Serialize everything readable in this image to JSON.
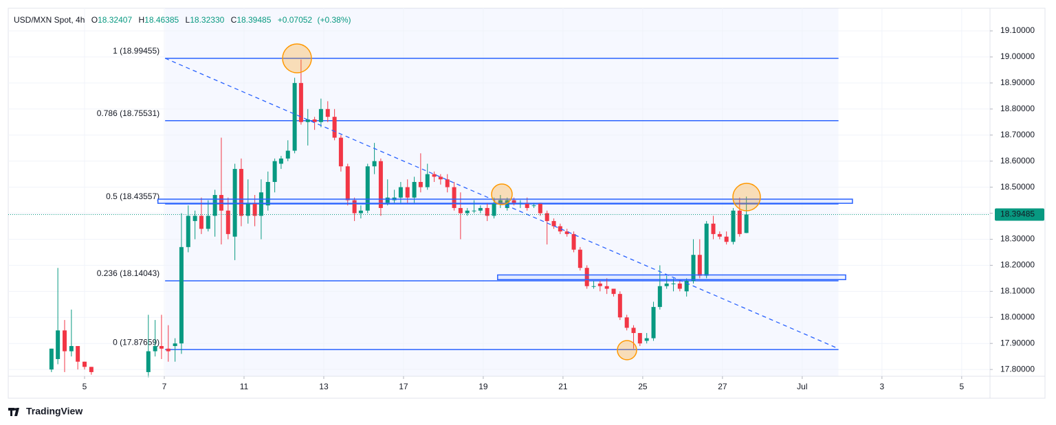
{
  "chart_data": {
    "type": "candlestick",
    "title": "USD/MXN Spot, 4h",
    "ohlc_header": [
      [
        "O",
        "18.32407"
      ],
      [
        "H",
        "18.46385"
      ],
      [
        "L",
        "18.32330"
      ],
      [
        "C",
        "18.39485"
      ]
    ],
    "change": "+0.07052",
    "change_pct": "(+0.38%)",
    "up_color": "#089981",
    "down_color": "#f23645",
    "x": [
      1.17,
      1.33,
      1.5,
      1.67,
      1.83,
      2.0,
      2.17,
      3.6,
      3.77,
      3.93,
      4.1,
      4.27,
      4.43,
      4.6,
      4.77,
      4.93,
      5.1,
      5.27,
      5.43,
      5.6,
      5.77,
      5.93,
      6.1,
      6.27,
      6.43,
      6.6,
      6.77,
      6.93,
      7.1,
      7.27,
      7.43,
      7.6,
      7.77,
      7.93,
      8.1,
      8.27,
      8.43,
      8.6,
      8.77,
      8.93,
      9.1,
      9.27,
      9.43,
      9.6,
      9.77,
      9.93,
      10.1,
      10.27,
      10.43,
      10.6,
      10.77,
      10.93,
      11.1,
      11.27,
      11.43,
      11.6,
      11.77,
      11.93,
      12.1,
      12.27,
      12.43,
      12.6,
      12.77,
      12.93,
      13.1,
      13.27,
      13.43,
      13.6,
      13.77,
      13.93,
      14.1,
      14.27,
      14.43,
      14.6,
      14.77,
      14.93,
      15.1,
      15.27,
      15.43,
      15.6,
      15.77,
      15.93,
      16.1,
      16.27,
      16.43,
      16.6,
      16.77,
      16.93,
      17.1,
      17.27,
      17.43,
      17.6,
      17.77,
      17.93,
      18.1,
      18.27,
      18.43,
      18.6
    ],
    "open": [
      17.8,
      17.84,
      17.95,
      17.87,
      17.89,
      17.83,
      17.81,
      17.79,
      17.87,
      17.89,
      17.88,
      17.89,
      17.9,
      18.27,
      18.37,
      18.39,
      18.34,
      18.39,
      18.47,
      18.41,
      18.31,
      18.57,
      18.39,
      18.44,
      18.39,
      18.43,
      18.52,
      18.59,
      18.61,
      18.64,
      18.9,
      18.75,
      18.76,
      18.75,
      18.8,
      18.77,
      18.69,
      18.58,
      18.45,
      18.4,
      18.41,
      18.58,
      18.6,
      18.44,
      18.45,
      18.46,
      18.5,
      18.46,
      18.52,
      18.5,
      18.55,
      18.54,
      18.53,
      18.5,
      18.42,
      18.4,
      18.41,
      18.41,
      18.42,
      18.39,
      18.44,
      18.42,
      18.45,
      18.44,
      18.44,
      18.43,
      18.44,
      18.4,
      18.37,
      18.35,
      18.33,
      18.32,
      18.26,
      18.19,
      18.12,
      18.13,
      18.12,
      18.11,
      18.09,
      18.0,
      17.96,
      17.94,
      17.91,
      17.92,
      18.04,
      18.12,
      18.13,
      18.13,
      18.1,
      18.14,
      18.24,
      18.16,
      18.36,
      18.32,
      18.31,
      18.29,
      18.41,
      18.32407
    ],
    "high": [
      17.88,
      18.19,
      17.99,
      18.03,
      17.89,
      17.83,
      17.81,
      18.01,
      17.99,
      18.01,
      17.97,
      17.92,
      18.4,
      18.43,
      18.41,
      18.46,
      18.45,
      18.49,
      18.69,
      18.46,
      18.59,
      18.61,
      18.53,
      18.47,
      18.53,
      18.56,
      18.61,
      18.62,
      18.68,
      18.92,
      18.99,
      18.8,
      18.77,
      18.84,
      18.83,
      18.8,
      18.7,
      18.59,
      18.46,
      18.43,
      18.59,
      18.67,
      18.61,
      18.53,
      18.49,
      18.52,
      18.53,
      18.54,
      18.63,
      18.59,
      18.56,
      18.55,
      18.55,
      18.52,
      18.48,
      18.42,
      18.45,
      18.43,
      18.44,
      18.46,
      18.47,
      18.46,
      18.46,
      18.45,
      18.46,
      18.44,
      18.44,
      18.41,
      18.38,
      18.36,
      18.34,
      18.33,
      18.27,
      18.2,
      18.14,
      18.14,
      18.15,
      18.11,
      18.1,
      18.01,
      17.97,
      17.94,
      17.94,
      18.06,
      18.2,
      18.16,
      18.15,
      18.14,
      18.15,
      18.3,
      18.3,
      18.37,
      18.39,
      18.33,
      18.33,
      18.42,
      18.46,
      18.46385
    ],
    "low": [
      17.79,
      17.82,
      17.79,
      17.85,
      17.8,
      17.8,
      17.78,
      17.77,
      17.85,
      17.84,
      17.83,
      17.83,
      17.86,
      18.25,
      18.3,
      18.32,
      18.33,
      18.31,
      18.28,
      18.3,
      18.22,
      18.35,
      18.36,
      18.35,
      18.3,
      18.41,
      18.48,
      18.57,
      18.6,
      18.63,
      18.74,
      18.66,
      18.72,
      18.73,
      18.75,
      18.68,
      18.56,
      18.43,
      18.37,
      18.38,
      18.4,
      18.55,
      18.39,
      18.43,
      18.44,
      18.44,
      18.44,
      18.44,
      18.48,
      18.49,
      18.52,
      18.51,
      18.48,
      18.41,
      18.3,
      18.39,
      18.4,
      18.4,
      18.37,
      18.38,
      18.42,
      18.41,
      18.43,
      18.42,
      18.41,
      18.42,
      18.39,
      18.28,
      18.34,
      18.32,
      18.31,
      18.25,
      18.18,
      18.11,
      18.11,
      18.1,
      18.09,
      18.08,
      17.99,
      17.95,
      17.88,
      17.89,
      17.9,
      17.91,
      18.03,
      18.11,
      18.1,
      18.1,
      18.08,
      18.13,
      18.15,
      18.15,
      18.3,
      18.3,
      18.28,
      18.28,
      18.31,
      18.3233
    ],
    "close": [
      17.88,
      17.95,
      17.87,
      17.89,
      17.83,
      17.81,
      17.79,
      17.87,
      17.89,
      17.88,
      17.87,
      17.9,
      18.27,
      18.39,
      18.39,
      18.34,
      18.39,
      18.47,
      18.41,
      18.32,
      18.57,
      18.39,
      18.44,
      18.39,
      18.48,
      18.52,
      18.6,
      18.61,
      18.64,
      18.9,
      18.75,
      18.76,
      18.75,
      18.8,
      18.77,
      18.69,
      18.58,
      18.45,
      18.4,
      18.41,
      18.58,
      18.6,
      18.42,
      18.46,
      18.46,
      18.5,
      18.46,
      18.52,
      18.5,
      18.55,
      18.54,
      18.53,
      18.5,
      18.42,
      18.4,
      18.41,
      18.41,
      18.42,
      18.39,
      18.44,
      18.45,
      18.45,
      18.44,
      18.44,
      18.42,
      18.43,
      18.4,
      18.37,
      18.35,
      18.33,
      18.32,
      18.26,
      18.19,
      18.12,
      18.12,
      18.12,
      18.11,
      18.09,
      18.0,
      17.96,
      17.94,
      17.9,
      17.92,
      18.04,
      18.12,
      18.13,
      18.13,
      18.11,
      18.14,
      18.24,
      18.16,
      18.36,
      18.32,
      18.31,
      18.29,
      18.41,
      18.32,
      18.39485
    ],
    "xlim": [
      0.086,
      24.71
    ],
    "ylim": [
      17.774,
      19.187
    ],
    "xticks": [
      {
        "value": 2,
        "label": "5"
      },
      {
        "value": 4,
        "label": "7"
      },
      {
        "value": 6,
        "label": "11"
      },
      {
        "value": 8,
        "label": "13"
      },
      {
        "value": 10,
        "label": "17"
      },
      {
        "value": 12,
        "label": "19"
      },
      {
        "value": 14,
        "label": "21"
      },
      {
        "value": 16,
        "label": "25"
      },
      {
        "value": 18,
        "label": "27"
      },
      {
        "value": 20,
        "label": "Jul"
      },
      {
        "value": 22,
        "label": "3"
      },
      {
        "value": 24,
        "label": "5"
      }
    ],
    "yticks": [
      {
        "value": 17.8,
        "label": "17.80000"
      },
      {
        "value": 17.9,
        "label": "17.90000"
      },
      {
        "value": 18.0,
        "label": "18.00000"
      },
      {
        "value": 18.1,
        "label": "18.10000"
      },
      {
        "value": 18.2,
        "label": "18.20000"
      },
      {
        "value": 18.3,
        "label": "18.30000"
      },
      {
        "value": 18.4,
        "label": "18.40000"
      },
      {
        "value": 18.5,
        "label": "18.50000"
      },
      {
        "value": 18.6,
        "label": "18.60000"
      },
      {
        "value": 18.7,
        "label": "18.70000"
      },
      {
        "value": 18.8,
        "label": "18.80000"
      },
      {
        "value": 18.9,
        "label": "18.90000"
      },
      {
        "value": 19.0,
        "label": "19.00000"
      },
      {
        "value": 19.1,
        "label": "19.10000"
      }
    ],
    "grid": true,
    "fib_x": [
      4.02,
      20.91
    ],
    "fib_color": "#2962ff",
    "fib_levels": [
      {
        "label": "1 (18.99455)",
        "value": 18.99455
      },
      {
        "label": "0.786 (18.75531)",
        "value": 18.75531
      },
      {
        "label": "0.5 (18.43557)",
        "value": 18.43557
      },
      {
        "label": "0.236 (18.14043)",
        "value": 18.14043
      },
      {
        "label": "0 (17.87659)",
        "value": 17.87659
      }
    ],
    "trendline": {
      "x": [
        4.02,
        20.91
      ],
      "y": [
        18.995,
        17.88
      ]
    },
    "zones": [
      {
        "x": [
          3.84,
          21.26
        ],
        "y": [
          18.438,
          18.454
        ]
      },
      {
        "x": [
          12.36,
          21.09
        ],
        "y": [
          18.145,
          18.163
        ]
      }
    ]
  },
  "footer": "TradingView"
}
